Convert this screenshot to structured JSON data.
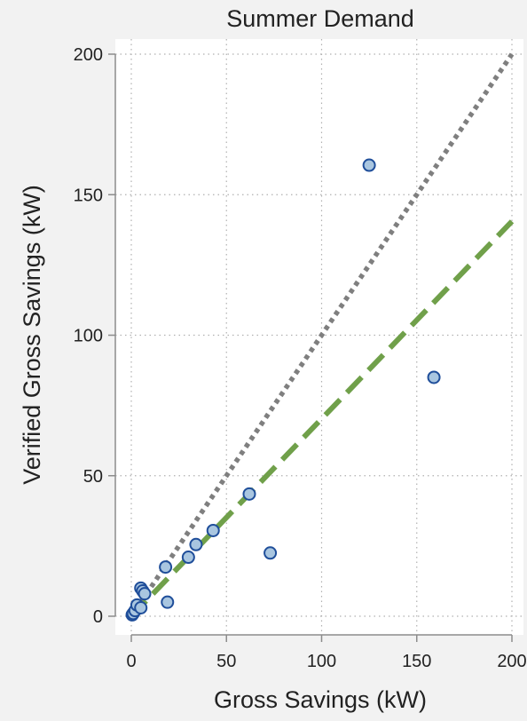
{
  "chart_data": {
    "type": "scatter",
    "title": "Summer Demand",
    "xlabel": "Gross Savings (kW)",
    "ylabel": "Verified Gross Savings (kW)",
    "xlim": [
      0,
      200
    ],
    "ylim": [
      0,
      200
    ],
    "x_ticks": [
      0,
      50,
      100,
      150,
      200
    ],
    "y_ticks": [
      0,
      50,
      100,
      150,
      200
    ],
    "grid": true,
    "points": [
      {
        "x": 0.5,
        "y": 0.5
      },
      {
        "x": 1,
        "y": 1
      },
      {
        "x": 2,
        "y": 2
      },
      {
        "x": 3,
        "y": 4
      },
      {
        "x": 5,
        "y": 3
      },
      {
        "x": 5,
        "y": 10
      },
      {
        "x": 6,
        "y": 9
      },
      {
        "x": 7,
        "y": 8
      },
      {
        "x": 18,
        "y": 17.5
      },
      {
        "x": 19,
        "y": 5
      },
      {
        "x": 30,
        "y": 21
      },
      {
        "x": 34,
        "y": 25.5
      },
      {
        "x": 43,
        "y": 30.5
      },
      {
        "x": 62,
        "y": 43.5
      },
      {
        "x": 73,
        "y": 22.5
      },
      {
        "x": 125,
        "y": 160.5
      },
      {
        "x": 159,
        "y": 85
      }
    ],
    "reference_lines": [
      {
        "kind": "identity",
        "x": [
          0,
          200
        ],
        "y": [
          0,
          200
        ],
        "style": "dotted",
        "color": "#7f7f7f"
      },
      {
        "kind": "fit",
        "x": [
          0,
          200
        ],
        "y": [
          0,
          140.5
        ],
        "style": "dashed",
        "color": "#70a04a"
      }
    ],
    "colors": {
      "background": "#f2f2f2",
      "plot_background": "#ffffff",
      "marker_fill": "#a9c6e0",
      "marker_edge": "#1f4e9a",
      "grid": "#b0b0b0",
      "axis": "#8c8c8c"
    }
  }
}
